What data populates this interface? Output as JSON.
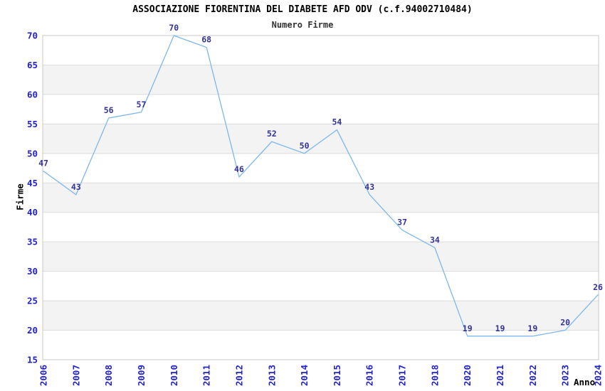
{
  "chart_data": {
    "type": "line",
    "title": "ASSOCIAZIONE FIORENTINA DEL DIABETE AFD ODV (c.f.94002710484)",
    "subtitle": "Numero Firme",
    "xlabel": "Anno",
    "ylabel": "Firme",
    "categories": [
      "2006",
      "2007",
      "2008",
      "2009",
      "2010",
      "2011",
      "2012",
      "2013",
      "2014",
      "2015",
      "2016",
      "2017",
      "2018",
      "2020",
      "2021",
      "2022",
      "2023",
      "2024"
    ],
    "values": [
      47,
      43,
      56,
      57,
      70,
      68,
      46,
      52,
      50,
      54,
      43,
      37,
      34,
      19,
      19,
      19,
      20,
      26
    ],
    "ylim": [
      15,
      70
    ],
    "ytick_step": 5,
    "grid": "horizontal-gridlines-with-alternating-bands",
    "legend": "none",
    "colors": {
      "line": "#7db7ec",
      "band_gray": "#f3f3f3",
      "gridline": "#dcdcdc",
      "plot_border": "#c8c8c8",
      "tick_label": "#2222cc",
      "data_label": "#333399",
      "title": "#000000",
      "subtitle": "#333333",
      "axis_title": "#000000"
    }
  }
}
